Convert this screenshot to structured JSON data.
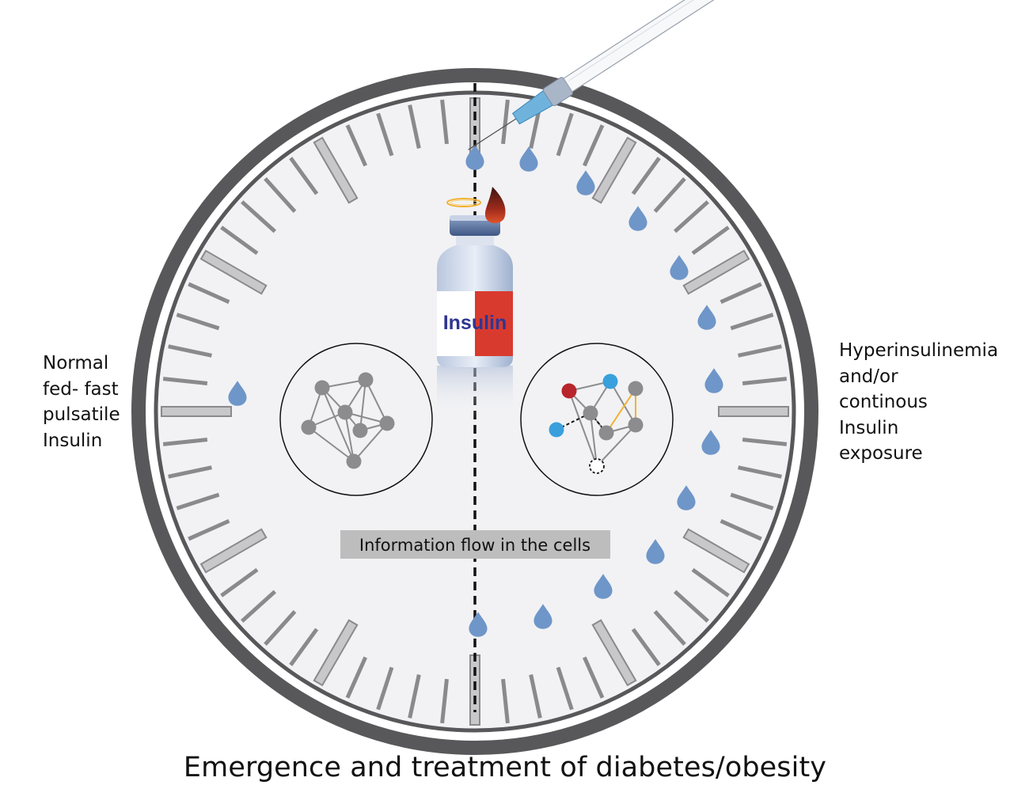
{
  "figure": {
    "left_label": [
      "Normal",
      "fed- fast",
      "pulsatile",
      "Insulin"
    ],
    "right_label": [
      "Hyperinsulinemia",
      "and/or",
      "continous",
      "Insulin",
      "exposure"
    ],
    "vial_label": "Insulin",
    "center_banner": "Information flow in the cells",
    "bottom_title": "Emergence and treatment of diabetes/obesity"
  },
  "colors": {
    "clock_ring": "#58585a",
    "clock_face": "#f2f2f4",
    "tick": "#8a8a8c",
    "drop": "#6f96c9",
    "node_gray": "#8c8c8e",
    "node_red": "#b8252b",
    "node_blue": "#3aa0dc",
    "edge_yellow": "#f2b233",
    "vial_red": "#d93a2e",
    "vial_text": "#2f3590",
    "banner_bg": "#bdbdbd"
  },
  "icons": [
    "syringe-icon",
    "insulin-vial-icon",
    "halo-icon",
    "flame-icon",
    "insulin-drop-icon",
    "cell-network-icon"
  ]
}
